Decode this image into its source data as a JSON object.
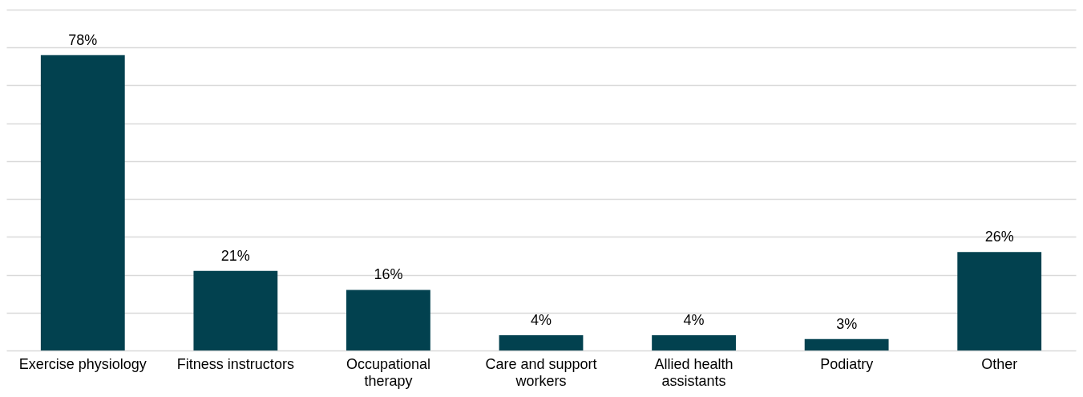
{
  "chart_data": {
    "type": "bar",
    "categories": [
      "Exercise physiology",
      "Fitness instructors",
      "Occupational therapy",
      "Care and support workers",
      "Allied health assistants",
      "Podiatry",
      "Other"
    ],
    "values": [
      78,
      21,
      16,
      4,
      4,
      3,
      26
    ],
    "value_labels": [
      "78%",
      "21%",
      "16%",
      "4%",
      "4%",
      "3%",
      "26%"
    ],
    "color": "#02414f",
    "ylim": [
      0,
      90
    ],
    "yticks": [
      {
        "value": 0,
        "label": null
      },
      {
        "value": 10,
        "label": null
      },
      {
        "value": 20,
        "label": null
      },
      {
        "value": 30,
        "label": null
      },
      {
        "value": 40,
        "label": null
      },
      {
        "value": 50,
        "label": null
      },
      {
        "value": 60,
        "label": null
      },
      {
        "value": 70,
        "label": null
      },
      {
        "value": 80,
        "label": null
      },
      {
        "value": 90,
        "label": null
      }
    ],
    "grid": "y",
    "tick_labels": "x"
  }
}
